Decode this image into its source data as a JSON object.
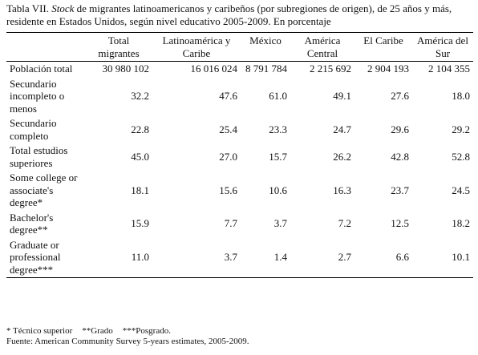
{
  "title": {
    "prefix": "Tabla VII.",
    "emphasis": "Stock",
    "rest": "de migrantes latinoamericanos y caribeños (por subregiones de origen), de 25 años y más, residente en Estados Unidos, según nivel educativo 2005-2009. En porcentaje"
  },
  "table": {
    "columns": [
      "Total migrantes",
      "Latinoamérica y Caribe",
      "México",
      "América Central",
      "El Caribe",
      "América del Sur"
    ],
    "rows": [
      {
        "label": "Población total",
        "values": [
          "30 980 102",
          "16 016 024",
          "8 791 784",
          "2 215 692",
          "2 904 193",
          "2 104 355"
        ]
      },
      {
        "label": "Secundario incompleto o menos",
        "values": [
          "32.2",
          "47.6",
          "61.0",
          "49.1",
          "27.6",
          "18.0"
        ]
      },
      {
        "label": "Secundario completo",
        "values": [
          "22.8",
          "25.4",
          "23.3",
          "24.7",
          "29.6",
          "29.2"
        ]
      },
      {
        "label": "Total estudios superiores",
        "values": [
          "45.0",
          "27.0",
          "15.7",
          "26.2",
          "42.8",
          "52.8"
        ]
      },
      {
        "label": "Some college or associate's degree*",
        "values": [
          "18.1",
          "15.6",
          "10.6",
          "16.3",
          "23.7",
          "24.5"
        ]
      },
      {
        "label": "Bachelor's degree**",
        "values": [
          "15.9",
          "7.7",
          "3.7",
          "7.2",
          "12.5",
          "18.2"
        ]
      },
      {
        "label": "Graduate or professional degree***",
        "values": [
          "11.0",
          "3.7",
          "1.4",
          "2.7",
          "6.6",
          "10.1"
        ]
      }
    ]
  },
  "footnotes": {
    "notes": [
      "* Técnico superior",
      "**Grado",
      "***Posgrado."
    ],
    "source": "Fuente: American Community Survey 5-years estimates, 2005-2009."
  }
}
